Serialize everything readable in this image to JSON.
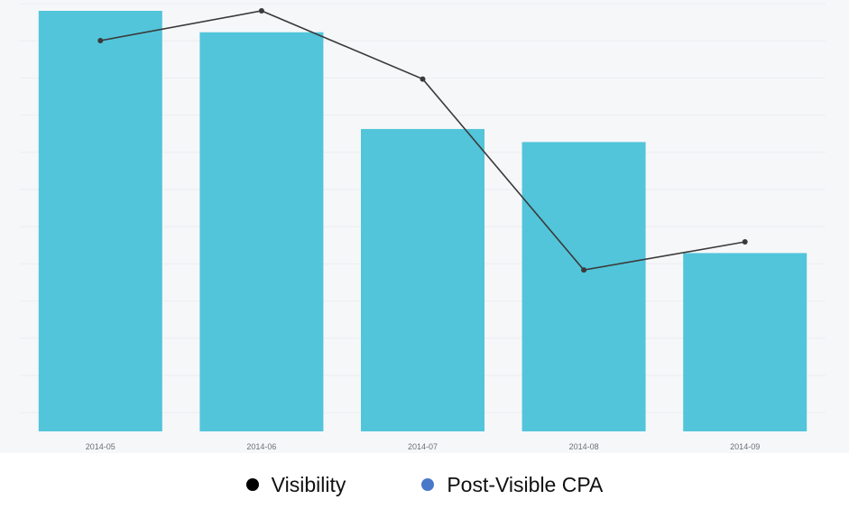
{
  "chart_data": {
    "type": "bar",
    "categories": [
      "2014-05",
      "2014-06",
      "2014-07",
      "2014-08",
      "2014-09"
    ],
    "series": [
      {
        "name": "Post-Visible CPA",
        "type": "bar",
        "values": [
          100,
          94.9,
          71.9,
          68.8,
          42.4
        ]
      },
      {
        "name": "Visibility",
        "type": "line",
        "values": [
          92.8,
          100,
          83.5,
          37.3,
          44.1
        ]
      }
    ],
    "ylim": [
      0,
      100
    ],
    "grid": true,
    "legend_position": "bottom",
    "colors": {
      "bar": "#52c5da",
      "line": "#3a3a3a",
      "plot_background": "#f6f7f9",
      "gridline": "#eceef1"
    }
  },
  "legend": {
    "items": [
      {
        "label": "Visibility",
        "color": "#000000"
      },
      {
        "label": "Post-Visible CPA",
        "color": "#4a78c8"
      }
    ]
  }
}
